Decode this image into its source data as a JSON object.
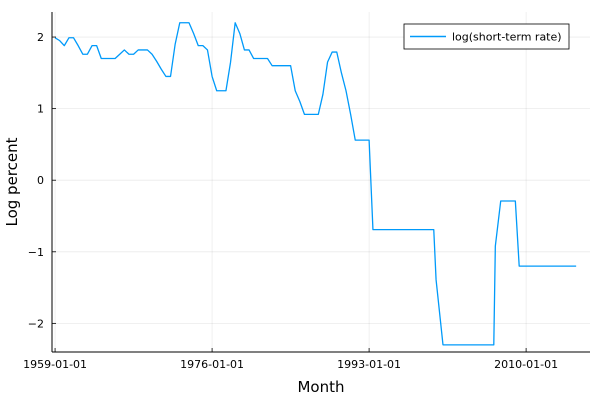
{
  "chart_data": {
    "type": "line",
    "xlabel": "Month",
    "ylabel": "Log percent",
    "x_ticks": [
      "1959-01-01",
      "1976-01-01",
      "1993-01-01",
      "2010-01-01"
    ],
    "y_ticks": [
      -2,
      -1,
      0,
      1,
      2
    ],
    "y_tick_labels": [
      "−2",
      "−1",
      "0",
      "1",
      "2"
    ],
    "xlim": [
      "1958-09-01",
      "2016-12-01"
    ],
    "ylim": [
      -2.4,
      2.35
    ],
    "grid": true,
    "legend_position": "top-right",
    "series": [
      {
        "name": "log(short-term rate)",
        "color": "#009AFA",
        "points": [
          [
            "1959-01-01",
            1.99
          ],
          [
            "1959-07-01",
            1.95
          ],
          [
            "1960-01-01",
            1.88
          ],
          [
            "1960-07-01",
            1.99
          ],
          [
            "1961-01-01",
            1.99
          ],
          [
            "1961-07-01",
            1.88
          ],
          [
            "1962-01-01",
            1.76
          ],
          [
            "1962-07-01",
            1.76
          ],
          [
            "1963-01-01",
            1.88
          ],
          [
            "1963-07-01",
            1.88
          ],
          [
            "1964-01-01",
            1.7
          ],
          [
            "1964-07-01",
            1.7
          ],
          [
            "1965-01-01",
            1.7
          ],
          [
            "1965-07-01",
            1.7
          ],
          [
            "1966-01-01",
            1.76
          ],
          [
            "1966-07-01",
            1.82
          ],
          [
            "1967-01-01",
            1.76
          ],
          [
            "1967-07-01",
            1.76
          ],
          [
            "1968-01-01",
            1.82
          ],
          [
            "1968-07-01",
            1.82
          ],
          [
            "1969-01-01",
            1.82
          ],
          [
            "1969-07-01",
            1.76
          ],
          [
            "1970-01-01",
            1.66
          ],
          [
            "1970-07-01",
            1.55
          ],
          [
            "1971-01-01",
            1.45
          ],
          [
            "1971-07-01",
            1.45
          ],
          [
            "1972-01-01",
            1.9
          ],
          [
            "1972-07-01",
            2.2
          ],
          [
            "1973-01-01",
            2.2
          ],
          [
            "1973-07-01",
            2.2
          ],
          [
            "1974-01-01",
            2.05
          ],
          [
            "1974-07-01",
            1.88
          ],
          [
            "1975-01-01",
            1.88
          ],
          [
            "1975-07-01",
            1.82
          ],
          [
            "1976-01-01",
            1.45
          ],
          [
            "1976-07-01",
            1.25
          ],
          [
            "1977-01-01",
            1.25
          ],
          [
            "1977-07-01",
            1.25
          ],
          [
            "1978-01-01",
            1.65
          ],
          [
            "1978-07-01",
            2.2
          ],
          [
            "1979-01-01",
            2.05
          ],
          [
            "1979-07-01",
            1.82
          ],
          [
            "1980-01-01",
            1.82
          ],
          [
            "1980-07-01",
            1.7
          ],
          [
            "1981-01-01",
            1.7
          ],
          [
            "1982-01-01",
            1.7
          ],
          [
            "1982-07-01",
            1.6
          ],
          [
            "1983-01-01",
            1.6
          ],
          [
            "1984-01-01",
            1.6
          ],
          [
            "1984-07-01",
            1.6
          ],
          [
            "1985-01-01",
            1.25
          ],
          [
            "1985-07-01",
            1.1
          ],
          [
            "1986-01-01",
            0.92
          ],
          [
            "1987-01-01",
            0.92
          ],
          [
            "1987-07-01",
            0.92
          ],
          [
            "1988-01-01",
            1.2
          ],
          [
            "1988-07-01",
            1.65
          ],
          [
            "1989-01-01",
            1.79
          ],
          [
            "1989-07-01",
            1.79
          ],
          [
            "1990-01-01",
            1.5
          ],
          [
            "1990-07-01",
            1.25
          ],
          [
            "1991-01-01",
            0.92
          ],
          [
            "1991-07-01",
            0.56
          ],
          [
            "1992-01-01",
            0.56
          ],
          [
            "1992-07-01",
            0.56
          ],
          [
            "1993-01-01",
            0.56
          ],
          [
            "1993-06-01",
            -0.69
          ],
          [
            "1994-01-01",
            -0.69
          ],
          [
            "1996-01-01",
            -0.69
          ],
          [
            "1998-01-01",
            -0.69
          ],
          [
            "2000-01-01",
            -0.69
          ],
          [
            "2000-04-01",
            -1.39
          ],
          [
            "2001-01-01",
            -2.3
          ],
          [
            "2003-01-01",
            -2.3
          ],
          [
            "2005-01-01",
            -2.3
          ],
          [
            "2006-07-01",
            -2.3
          ],
          [
            "2006-09-01",
            -0.92
          ],
          [
            "2007-04-01",
            -0.29
          ],
          [
            "2008-01-01",
            -0.29
          ],
          [
            "2008-11-01",
            -0.29
          ],
          [
            "2009-04-01",
            -1.2
          ],
          [
            "2011-01-01",
            -1.2
          ],
          [
            "2013-01-01",
            -1.2
          ],
          [
            "2015-06-01",
            -1.2
          ]
        ]
      }
    ]
  }
}
